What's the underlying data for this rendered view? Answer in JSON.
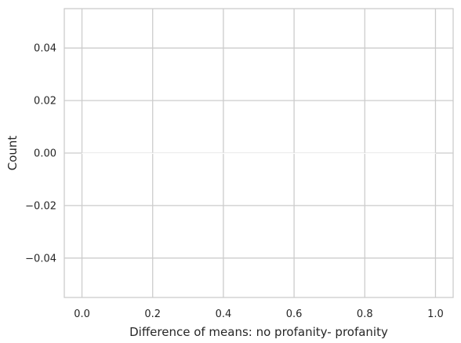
{
  "chart_data": {
    "type": "bar",
    "title": "",
    "xlabel": "Difference of means: no profanity- profanity",
    "ylabel": "Count",
    "xlim": [
      -0.05,
      1.05
    ],
    "ylim": [
      -0.055,
      0.055
    ],
    "x_ticks": [
      0.0,
      0.2,
      0.4,
      0.6,
      0.8,
      1.0
    ],
    "x_tick_labels": [
      "0.0",
      "0.2",
      "0.4",
      "0.6",
      "0.8",
      "1.0"
    ],
    "y_ticks": [
      0.04,
      0.02,
      0.0,
      -0.02,
      -0.04
    ],
    "y_tick_labels": [
      "0.04",
      "0.02",
      "0.00",
      "−0.02",
      "−0.04"
    ],
    "grid": true,
    "bins": [
      {
        "x0": 0.0,
        "x1": 1.0,
        "count": 0
      }
    ],
    "colors": {
      "background": "#ffffff",
      "grid": "#cccccc",
      "frame": "#cccccc",
      "text": "#262626"
    }
  }
}
